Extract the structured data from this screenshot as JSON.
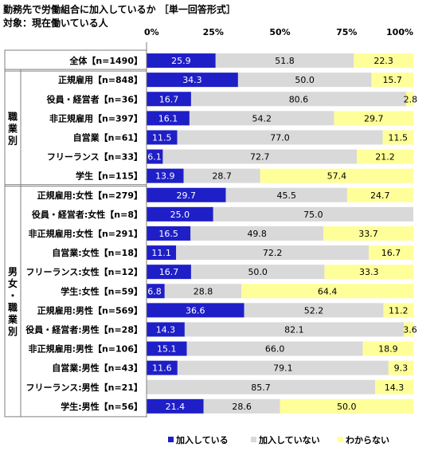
{
  "header": {
    "title": "勤務先で労働組合に加入しているか ［単一回答形式］",
    "subtitle": "対象：現在働いている人"
  },
  "colors": {
    "joined": "#1f1fc8",
    "not_joined": "#d9d9d9",
    "unknown": "#ffff99"
  },
  "chart_data": {
    "type": "bar",
    "orientation": "horizontal",
    "stacked": true,
    "title": "勤務先で労働組合に加入しているか ［単一回答形式］",
    "xlim": [
      0,
      100
    ],
    "x_ticks": [
      "0%",
      "25%",
      "50%",
      "75%",
      "100%"
    ],
    "legend_position": "bottom",
    "series": [
      {
        "name": "加入している",
        "color": "#1f1fc8"
      },
      {
        "name": "加入していない",
        "color": "#d9d9d9"
      },
      {
        "name": "わからない",
        "color": "#ffff99"
      }
    ],
    "groups": [
      {
        "label": "",
        "start": 0,
        "end": 0
      },
      {
        "label": "職業別",
        "start": 1,
        "end": 6
      },
      {
        "label": "男女・職業別",
        "start": 7,
        "end": 18
      }
    ],
    "rows": [
      {
        "label": "全体【n=1490】",
        "values": [
          25.9,
          51.8,
          22.3
        ],
        "texts": [
          "25.9",
          "51.8",
          "22.3"
        ]
      },
      {
        "label": "正規雇用【n=848】",
        "values": [
          34.3,
          50.0,
          15.7
        ],
        "texts": [
          "34.3",
          "50.0",
          "15.7"
        ]
      },
      {
        "label": "役員・経営者【n=36】",
        "values": [
          16.7,
          80.6,
          2.8
        ],
        "texts": [
          "16.7",
          "80.6",
          "2.8"
        ]
      },
      {
        "label": "非正規雇用【n=397】",
        "values": [
          16.1,
          54.2,
          29.7
        ],
        "texts": [
          "16.1",
          "54.2",
          "29.7"
        ]
      },
      {
        "label": "自営業【n=61】",
        "values": [
          11.5,
          77.0,
          11.5
        ],
        "texts": [
          "11.5",
          "77.0",
          "11.5"
        ]
      },
      {
        "label": "フリーランス【n=33】",
        "values": [
          6.1,
          72.7,
          21.2
        ],
        "texts": [
          "6.1",
          "72.7",
          "21.2"
        ]
      },
      {
        "label": "学生【n=115】",
        "values": [
          13.9,
          28.7,
          57.4
        ],
        "texts": [
          "13.9",
          "28.7",
          "57.4"
        ]
      },
      {
        "label": "正規雇用:女性【n=279】",
        "values": [
          29.7,
          45.5,
          24.7
        ],
        "texts": [
          "29.7",
          "45.5",
          "24.7"
        ]
      },
      {
        "label": "役員・経営者:女性【n=8】",
        "values": [
          25.0,
          75.0,
          0
        ],
        "texts": [
          "25.0",
          "75.0",
          ""
        ]
      },
      {
        "label": "非正規雇用:女性【n=291】",
        "values": [
          16.5,
          49.8,
          33.7
        ],
        "texts": [
          "16.5",
          "49.8",
          "33.7"
        ]
      },
      {
        "label": "自営業:女性【n=18】",
        "values": [
          11.1,
          72.2,
          16.7
        ],
        "texts": [
          "11.1",
          "72.2",
          "16.7"
        ]
      },
      {
        "label": "フリーランス:女性【n=12】",
        "values": [
          16.7,
          50.0,
          33.3
        ],
        "texts": [
          "16.7",
          "50.0",
          "33.3"
        ]
      },
      {
        "label": "学生:女性【n=59】",
        "values": [
          6.8,
          28.8,
          64.4
        ],
        "texts": [
          "6.8",
          "28.8",
          "64.4"
        ]
      },
      {
        "label": "正規雇用:男性【n=569】",
        "values": [
          36.6,
          52.2,
          11.2
        ],
        "texts": [
          "36.6",
          "52.2",
          "11.2"
        ]
      },
      {
        "label": "役員・経営者:男性【n=28】",
        "values": [
          14.3,
          82.1,
          3.6
        ],
        "texts": [
          "14.3",
          "82.1",
          "3.6"
        ]
      },
      {
        "label": "非正規雇用:男性【n=106】",
        "values": [
          15.1,
          66.0,
          18.9
        ],
        "texts": [
          "15.1",
          "66.0",
          "18.9"
        ]
      },
      {
        "label": "自営業:男性【n=43】",
        "values": [
          11.6,
          79.1,
          9.3
        ],
        "texts": [
          "11.6",
          "79.1",
          "9.3"
        ]
      },
      {
        "label": "フリーランス:男性【n=21】",
        "values": [
          0,
          85.7,
          14.3
        ],
        "texts": [
          "",
          "85.7",
          "14.3"
        ]
      },
      {
        "label": "学生:男性【n=56】",
        "values": [
          21.4,
          28.6,
          50.0
        ],
        "texts": [
          "21.4",
          "28.6",
          "50.0"
        ]
      }
    ]
  }
}
